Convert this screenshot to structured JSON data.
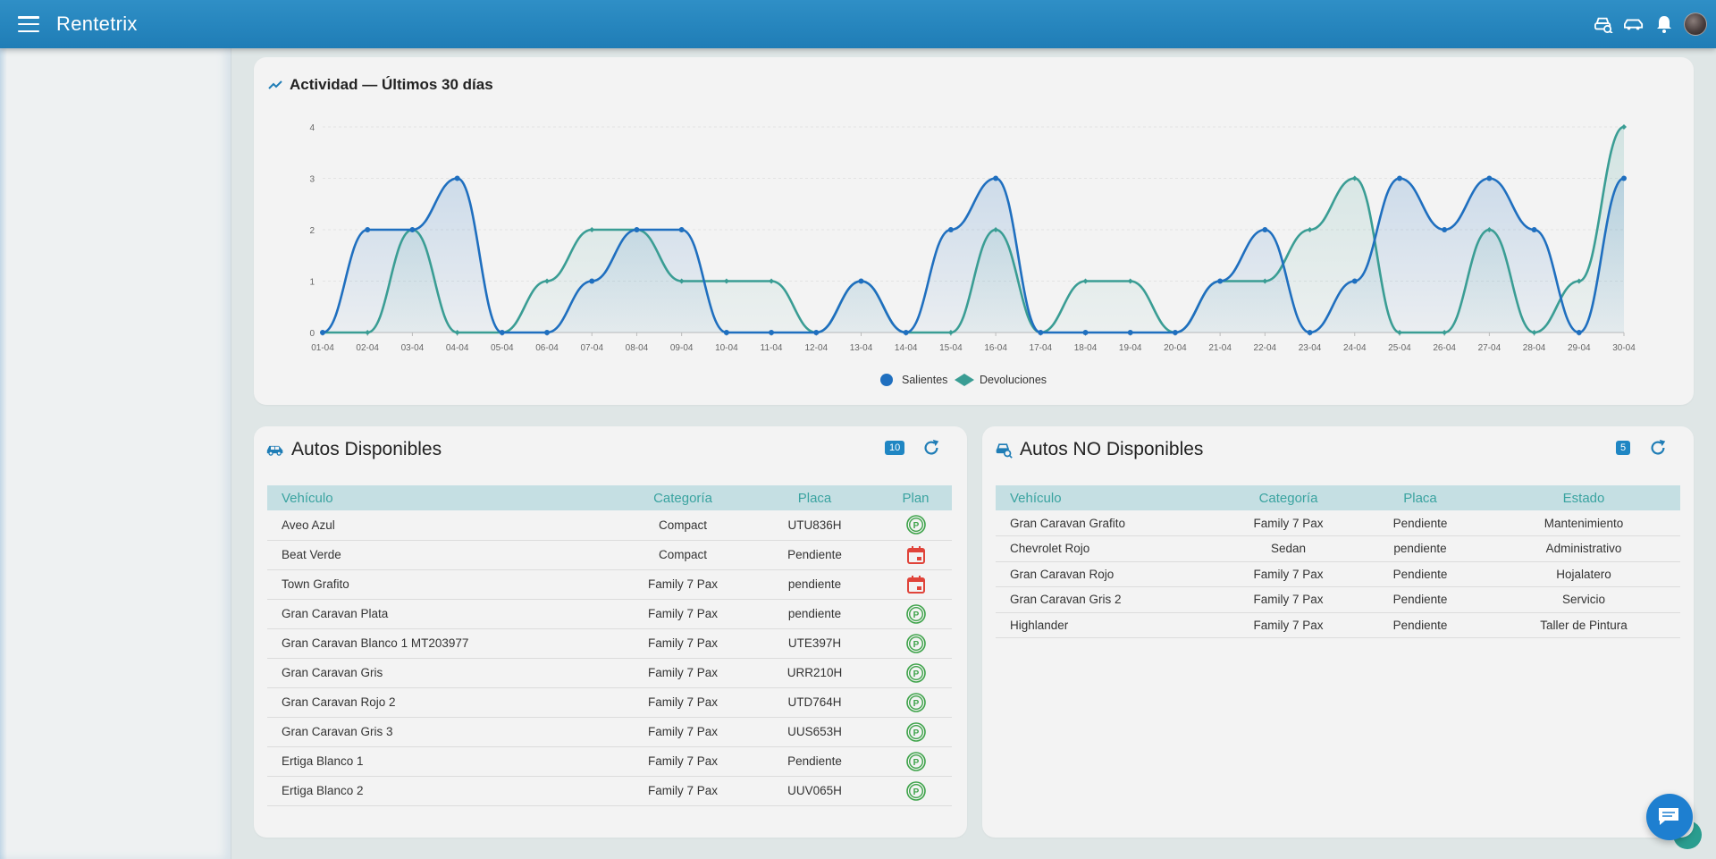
{
  "app": {
    "title": "Rentetrix"
  },
  "topbar": {
    "icons": [
      "car-search-icon",
      "car-outline-icon",
      "bell-icon",
      "user-avatar"
    ]
  },
  "activity": {
    "title": "Actividad — Últimos 30 días",
    "chart_data": {
      "type": "line",
      "title": "Actividad — Últimos 30 días",
      "categories": [
        "01-04",
        "02-04",
        "03-04",
        "04-04",
        "05-04",
        "06-04",
        "07-04",
        "08-04",
        "09-04",
        "10-04",
        "11-04",
        "12-04",
        "13-04",
        "14-04",
        "15-04",
        "16-04",
        "17-04",
        "18-04",
        "19-04",
        "20-04",
        "21-04",
        "22-04",
        "23-04",
        "24-04",
        "25-04",
        "26-04",
        "27-04",
        "28-04",
        "29-04",
        "30-04"
      ],
      "ylim": [
        0,
        4
      ],
      "yticks": [
        0,
        1,
        2,
        3,
        4
      ],
      "legend": "bottom",
      "series": [
        {
          "name": "Salientes",
          "color": "#1f6fbf",
          "values": [
            0,
            2,
            2,
            3,
            0,
            0,
            1,
            2,
            2,
            0,
            0,
            0,
            1,
            0,
            2,
            3,
            0,
            0,
            0,
            0,
            1,
            2,
            0,
            1,
            3,
            2,
            3,
            2,
            0,
            3
          ]
        },
        {
          "name": "Devoluciones",
          "color": "#3a9d94",
          "values": [
            0,
            0,
            2,
            0,
            0,
            1,
            2,
            2,
            1,
            1,
            1,
            0,
            1,
            0,
            0,
            2,
            0,
            1,
            1,
            0,
            1,
            1,
            2,
            3,
            0,
            0,
            2,
            0,
            1,
            4
          ]
        }
      ]
    }
  },
  "available": {
    "title": "Autos Disponibles",
    "count": "10",
    "columns": [
      "Vehículo",
      "Categoría",
      "Placa",
      "Plan"
    ],
    "rows": [
      {
        "vehicle": "Aveo Azul",
        "category": "Compact",
        "plate": "UTU836H",
        "plan": "parking"
      },
      {
        "vehicle": "Beat Verde",
        "category": "Compact",
        "plate": "Pendiente",
        "plan": "calendar"
      },
      {
        "vehicle": "Town Grafito",
        "category": "Family 7 Pax",
        "plate": "pendiente",
        "plan": "calendar"
      },
      {
        "vehicle": "Gran Caravan Plata",
        "category": "Family 7 Pax",
        "plate": "pendiente",
        "plan": "parking"
      },
      {
        "vehicle": "Gran Caravan Blanco 1 MT203977",
        "category": "Family 7 Pax",
        "plate": "UTE397H",
        "plan": "parking"
      },
      {
        "vehicle": "Gran Caravan Gris",
        "category": "Family 7 Pax",
        "plate": "URR210H",
        "plan": "parking"
      },
      {
        "vehicle": "Gran Caravan Rojo 2",
        "category": "Family 7 Pax",
        "plate": "UTD764H",
        "plan": "parking"
      },
      {
        "vehicle": "Gran Caravan Gris 3",
        "category": "Family 7 Pax",
        "plate": "UUS653H",
        "plan": "parking"
      },
      {
        "vehicle": "Ertiga Blanco 1",
        "category": "Family 7 Pax",
        "plate": "Pendiente",
        "plan": "parking"
      },
      {
        "vehicle": "Ertiga Blanco 2",
        "category": "Family 7 Pax",
        "plate": "UUV065H",
        "plan": "parking"
      }
    ]
  },
  "unavailable": {
    "title": "Autos NO Disponibles",
    "count": "5",
    "columns": [
      "Vehículo",
      "Categoría",
      "Placa",
      "Estado"
    ],
    "rows": [
      {
        "vehicle": "Gran Caravan Grafito",
        "category": "Family 7 Pax",
        "plate": "Pendiente",
        "status": "Mantenimiento"
      },
      {
        "vehicle": "Chevrolet Rojo",
        "category": "Sedan",
        "plate": "pendiente",
        "status": "Administrativo"
      },
      {
        "vehicle": "Gran Caravan Rojo",
        "category": "Family 7 Pax",
        "plate": "Pendiente",
        "status": "Hojalatero"
      },
      {
        "vehicle": "Gran Caravan Gris 2",
        "category": "Family 7 Pax",
        "plate": "Pendiente",
        "status": "Servicio"
      },
      {
        "vehicle": "Highlander",
        "category": "Family 7 Pax",
        "plate": "Pendiente",
        "status": "Taller de Pintura"
      }
    ]
  },
  "colors": {
    "primary": "#1f7db6",
    "teal": "#3a9d94",
    "header_row": "#c5dfe3",
    "calendar": "#e0443a",
    "parking": "#3ea34a"
  }
}
